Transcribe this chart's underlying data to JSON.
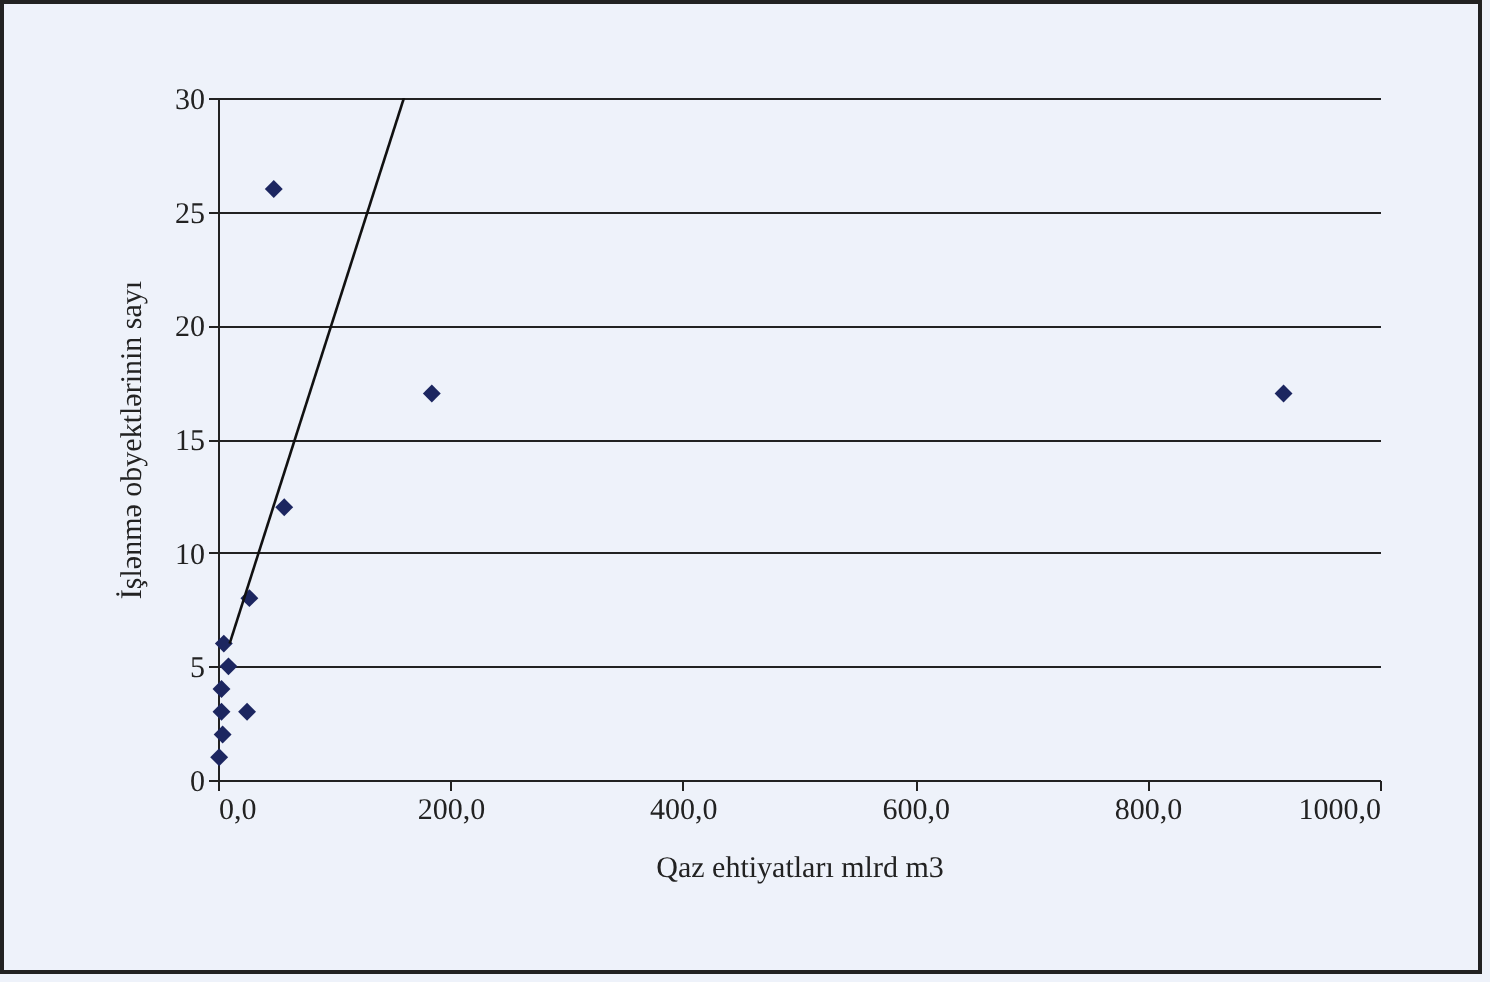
{
  "chart_data": {
    "type": "scatter",
    "xlabel": "Qaz ehtiyatları mlrd m3",
    "ylabel": "İşlənmə obyektlərinin sayı",
    "xlim": [
      0,
      1000
    ],
    "ylim": [
      0,
      30
    ],
    "xticks": [
      {
        "value": 0,
        "label": "0,0"
      },
      {
        "value": 200,
        "label": "200,0"
      },
      {
        "value": 400,
        "label": "400,0"
      },
      {
        "value": 600,
        "label": "600,0"
      },
      {
        "value": 800,
        "label": "800,0"
      },
      {
        "value": 1000,
        "label": "1000,0"
      }
    ],
    "yticks": [
      0,
      5,
      10,
      15,
      20,
      25,
      30
    ],
    "grid": "y",
    "marker": "diamond",
    "series": [
      {
        "color": "#1c2660",
        "x": [
          1,
          4,
          3,
          25,
          3,
          9,
          5,
          27,
          57,
          48,
          184,
          917
        ],
        "values": [
          1,
          2,
          3,
          3,
          4,
          5,
          6,
          8,
          12,
          26,
          17,
          17
        ]
      },
      {
        "type": "line",
        "marker": "none",
        "color": "#111111",
        "x": [
          10,
          160
        ],
        "values": [
          6,
          30
        ]
      }
    ]
  }
}
